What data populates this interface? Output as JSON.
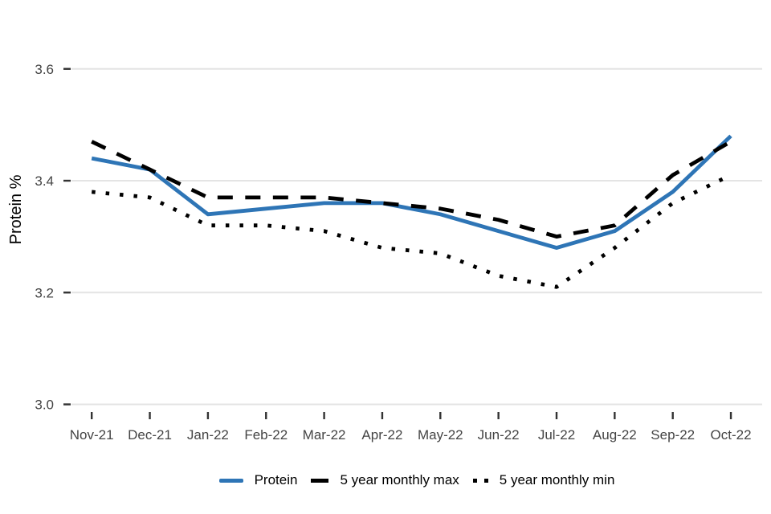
{
  "chart_data": {
    "type": "line",
    "title": "",
    "xlabel": "",
    "ylabel": "Protein %",
    "categories": [
      "Nov-21",
      "Dec-21",
      "Jan-22",
      "Feb-22",
      "Mar-22",
      "Apr-22",
      "May-22",
      "Jun-22",
      "Jul-22",
      "Aug-22",
      "Sep-22",
      "Oct-22"
    ],
    "y_ticks": [
      3.0,
      3.2,
      3.4,
      3.6
    ],
    "ylim": [
      2.97,
      3.63
    ],
    "grid": "horizontal-only",
    "legend_position": "bottom-center",
    "series": [
      {
        "name": "Protein",
        "style": "solid",
        "color": "#2E75B6",
        "values": [
          3.44,
          3.42,
          3.34,
          3.35,
          3.36,
          3.36,
          3.34,
          3.31,
          3.28,
          3.31,
          3.38,
          3.48
        ]
      },
      {
        "name": "5 year monthly max",
        "style": "dashed",
        "color": "#000000",
        "values": [
          3.47,
          3.42,
          3.37,
          3.37,
          3.37,
          3.36,
          3.35,
          3.33,
          3.3,
          3.32,
          3.41,
          3.47
        ]
      },
      {
        "name": "5 year monthly min",
        "style": "dotted",
        "color": "#000000",
        "values": [
          3.38,
          3.37,
          3.32,
          3.32,
          3.31,
          3.28,
          3.27,
          3.23,
          3.21,
          3.28,
          3.36,
          3.41
        ]
      }
    ]
  },
  "colors": {
    "background": "#FFFFFF",
    "gridline": "#E4E4E4",
    "tick_mark": "#333333",
    "tick_label": "#444444",
    "axis_title": "#000000"
  }
}
